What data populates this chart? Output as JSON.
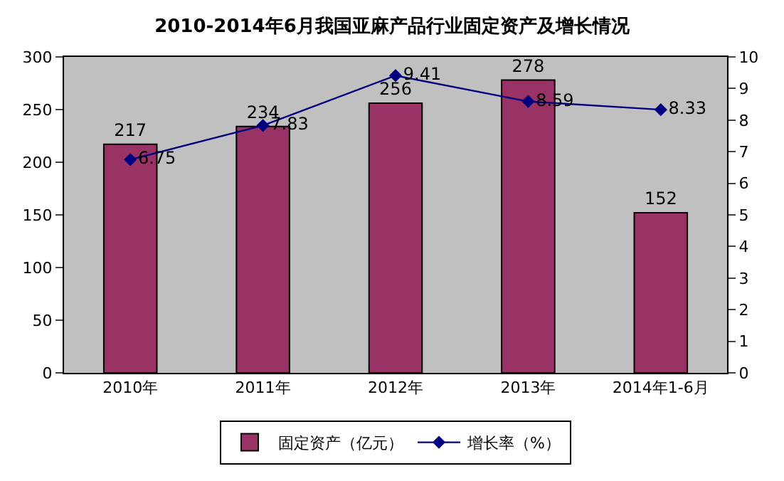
{
  "chart_data": {
    "type": "bar",
    "title": "2010-2014年6月我国亚麻产品行业固定资产及增长情况",
    "categories": [
      "2010年",
      "2011年",
      "2012年",
      "2013年",
      "2014年1-6月"
    ],
    "series": [
      {
        "name": "固定资产（亿元）",
        "color": "#993366",
        "values": [
          217,
          234,
          256,
          278,
          152
        ]
      },
      {
        "name": "增长率（%）",
        "type": "line",
        "axis": "y2",
        "color": "#000080",
        "marker": "diamond",
        "values": [
          6.75,
          7.83,
          9.41,
          8.59,
          8.33
        ]
      }
    ],
    "ylim": [
      0,
      300
    ],
    "yticks": [
      0,
      50,
      100,
      150,
      200,
      250,
      300
    ],
    "y2lim": [
      0,
      10
    ],
    "y2ticks": [
      0,
      1,
      2,
      3,
      4,
      5,
      6,
      7,
      8,
      9,
      10
    ],
    "data_labels": true,
    "grid": false,
    "legend": "bottom"
  }
}
